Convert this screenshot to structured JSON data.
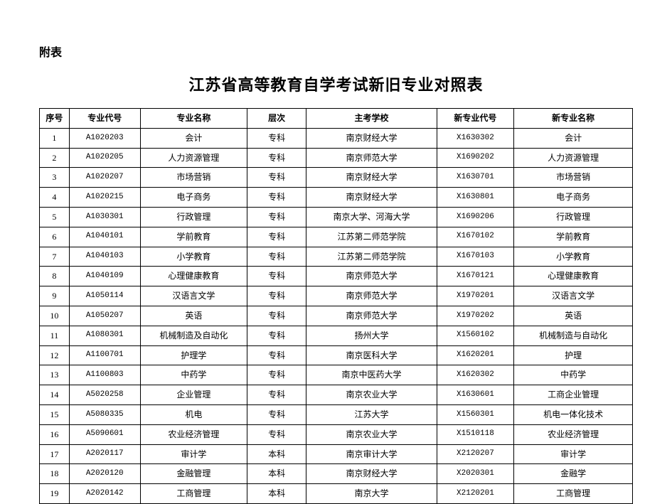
{
  "header_label": "附表",
  "title": "江苏省高等教育自学考试新旧专业对照表",
  "columns": [
    "序号",
    "专业代号",
    "专业名称",
    "层次",
    "主考学校",
    "新专业代号",
    "新专业名称"
  ],
  "col_widths": [
    "5%",
    "12%",
    "18%",
    "10%",
    "22%",
    "13%",
    "20%"
  ],
  "rows": [
    [
      "1",
      "A1020203",
      "会计",
      "专科",
      "南京财经大学",
      "X1630302",
      "会计"
    ],
    [
      "2",
      "A1020205",
      "人力资源管理",
      "专科",
      "南京师范大学",
      "X1690202",
      "人力资源管理"
    ],
    [
      "3",
      "A1020207",
      "市场营销",
      "专科",
      "南京财经大学",
      "X1630701",
      "市场营销"
    ],
    [
      "4",
      "A1020215",
      "电子商务",
      "专科",
      "南京财经大学",
      "X1630801",
      "电子商务"
    ],
    [
      "5",
      "A1030301",
      "行政管理",
      "专科",
      "南京大学、河海大学",
      "X1690206",
      "行政管理"
    ],
    [
      "6",
      "A1040101",
      "学前教育",
      "专科",
      "江苏第二师范学院",
      "X1670102",
      "学前教育"
    ],
    [
      "7",
      "A1040103",
      "小学教育",
      "专科",
      "江苏第二师范学院",
      "X1670103",
      "小学教育"
    ],
    [
      "8",
      "A1040109",
      "心理健康教育",
      "专科",
      "南京师范大学",
      "X1670121",
      "心理健康教育"
    ],
    [
      "9",
      "A1050114",
      "汉语言文学",
      "专科",
      "南京师范大学",
      "X1970201",
      "汉语言文学"
    ],
    [
      "10",
      "A1050207",
      "英语",
      "专科",
      "南京师范大学",
      "X1970202",
      "英语"
    ],
    [
      "11",
      "A1080301",
      "机械制造及自动化",
      "专科",
      "扬州大学",
      "X1560102",
      "机械制造与自动化"
    ],
    [
      "12",
      "A1100701",
      "护理学",
      "专科",
      "南京医科大学",
      "X1620201",
      "护理"
    ],
    [
      "13",
      "A1100803",
      "中药学",
      "专科",
      "南京中医药大学",
      "X1620302",
      "中药学"
    ],
    [
      "14",
      "A5020258",
      "企业管理",
      "专科",
      "南京农业大学",
      "X1630601",
      "工商企业管理"
    ],
    [
      "15",
      "A5080335",
      "机电",
      "专科",
      "江苏大学",
      "X1560301",
      "机电一体化技术"
    ],
    [
      "16",
      "A5090601",
      "农业经济管理",
      "专科",
      "南京农业大学",
      "X1510118",
      "农业经济管理"
    ],
    [
      "17",
      "A2020117",
      "审计学",
      "本科",
      "南京审计大学",
      "X2120207",
      "审计学"
    ],
    [
      "18",
      "A2020120",
      "金融管理",
      "本科",
      "南京财经大学",
      "X2020301",
      "金融学"
    ],
    [
      "19",
      "A2020142",
      "工商管理",
      "本科",
      "南京大学",
      "X2120201",
      "工商管理"
    ]
  ],
  "style": {
    "background_color": "#ffffff",
    "border_color": "#000000",
    "text_color": "#000000",
    "body_fontsize": 12,
    "title_fontsize": 22,
    "label_fontsize": 16,
    "code_font": "Courier New"
  }
}
